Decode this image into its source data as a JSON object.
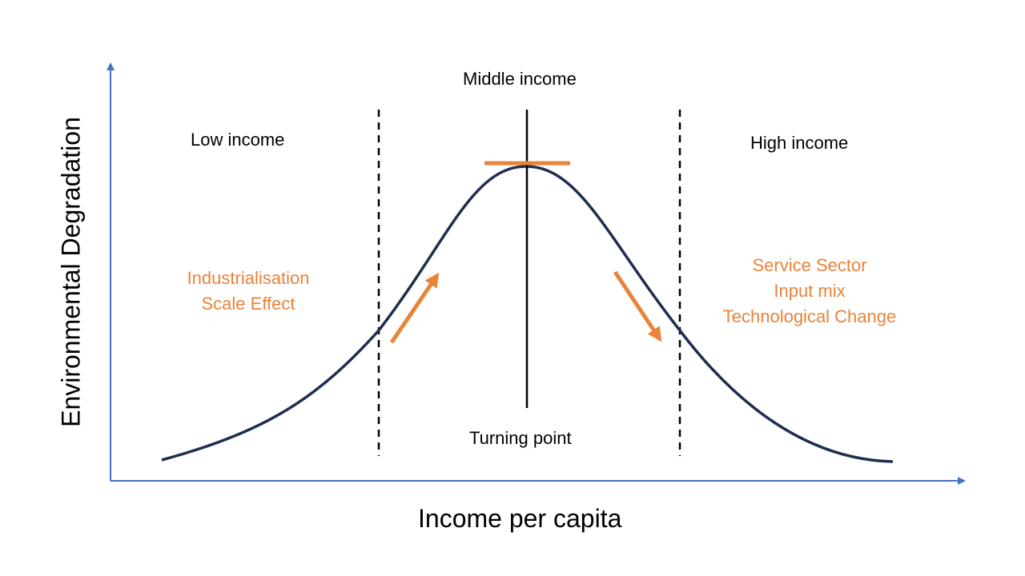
{
  "axes": {
    "x_label": "Income per capita",
    "y_label": "Environmental Degradation"
  },
  "regions": {
    "low": "Low income",
    "middle": "Middle income",
    "high": "High income"
  },
  "turning_point": "Turning point",
  "left_drivers": [
    "Industrialisation",
    "Scale Effect"
  ],
  "right_drivers": [
    "Service Sector",
    "Input mix",
    "Technological Change"
  ],
  "colors": {
    "axis": "#4472c4",
    "curve": "#1f2d4f",
    "accent": "#e8833a",
    "text": "#000000"
  }
}
